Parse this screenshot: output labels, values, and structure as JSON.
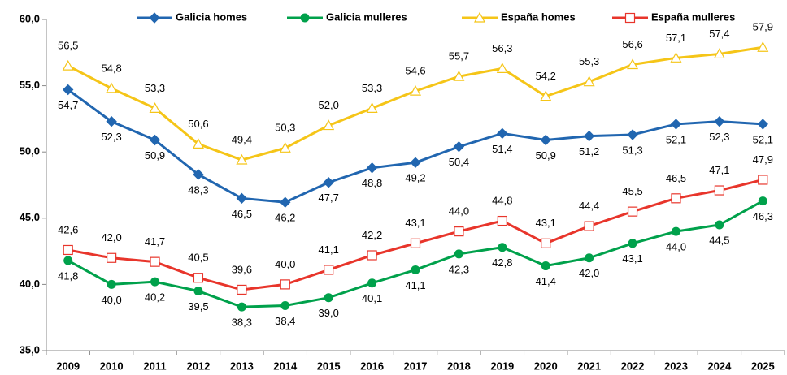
{
  "chart_data": {
    "type": "line",
    "categories": [
      "2009",
      "2010",
      "2011",
      "2012",
      "2013",
      "2014",
      "2015",
      "2016",
      "2017",
      "2018",
      "2019",
      "2020",
      "2021",
      "2022",
      "2023",
      "2024",
      "2025"
    ],
    "ylim": [
      35,
      60
    ],
    "yticks": [
      {
        "value": 35,
        "label": "35,0"
      },
      {
        "value": 40,
        "label": "40,0"
      },
      {
        "value": 45,
        "label": "45,0"
      },
      {
        "value": 50,
        "label": "50,0"
      },
      {
        "value": 55,
        "label": "55,0"
      },
      {
        "value": 60,
        "label": "60,0"
      }
    ],
    "grid": false,
    "legend": "top",
    "series": [
      {
        "name": "Galicia homes",
        "color": "#2166b0",
        "marker": "diamond",
        "values": [
          54.7,
          52.3,
          50.9,
          48.3,
          46.5,
          46.2,
          47.7,
          48.8,
          49.2,
          50.4,
          51.4,
          50.9,
          51.2,
          51.3,
          52.1,
          52.3,
          52.1
        ],
        "value_labels": [
          "54,7",
          "52,3",
          "50,9",
          "48,3",
          "46,5",
          "46,2",
          "47,7",
          "48,8",
          "49,2",
          "50,4",
          "51,4",
          "50,9",
          "51,2",
          "51,3",
          "52,1",
          "52,3",
          "52,1"
        ]
      },
      {
        "name": "Galicia mulleres",
        "color": "#00a14b",
        "marker": "circle",
        "values": [
          41.8,
          40.0,
          40.2,
          39.5,
          38.3,
          38.4,
          39.0,
          40.1,
          41.1,
          42.3,
          42.8,
          41.4,
          42.0,
          43.1,
          44.0,
          44.5,
          46.3
        ],
        "value_labels": [
          "41,8",
          "40,0",
          "40,2",
          "39,5",
          "38,3",
          "38,4",
          "39,0",
          "40,1",
          "41,1",
          "42,3",
          "42,8",
          "41,4",
          "42,0",
          "43,1",
          "44,0",
          "44,5",
          "46,3"
        ]
      },
      {
        "name": "España homes",
        "color": "#f5c518",
        "marker": "triangle",
        "values": [
          56.5,
          54.8,
          53.3,
          50.6,
          49.4,
          50.3,
          52.0,
          53.3,
          54.6,
          55.7,
          56.3,
          54.2,
          55.3,
          56.6,
          57.1,
          57.4,
          57.9
        ],
        "value_labels": [
          "56,5",
          "54,8",
          "53,3",
          "50,6",
          "49,4",
          "50,3",
          "52,0",
          "53,3",
          "54,6",
          "55,7",
          "56,3",
          "54,2",
          "55,3",
          "56,6",
          "57,1",
          "57,4",
          "57,9"
        ]
      },
      {
        "name": "España mulleres",
        "color": "#e8352b",
        "marker": "square",
        "values": [
          42.6,
          42.0,
          41.7,
          40.5,
          39.6,
          40.0,
          41.1,
          42.2,
          43.1,
          44.0,
          44.8,
          43.1,
          44.4,
          45.5,
          46.5,
          47.1,
          47.9
        ],
        "value_labels": [
          "42,6",
          "42,0",
          "41,7",
          "40,5",
          "39,6",
          "40,0",
          "41,1",
          "42,2",
          "43,1",
          "44,0",
          "44,8",
          "43,1",
          "44,4",
          "45,5",
          "46,5",
          "47,1",
          "47,9"
        ]
      }
    ]
  }
}
